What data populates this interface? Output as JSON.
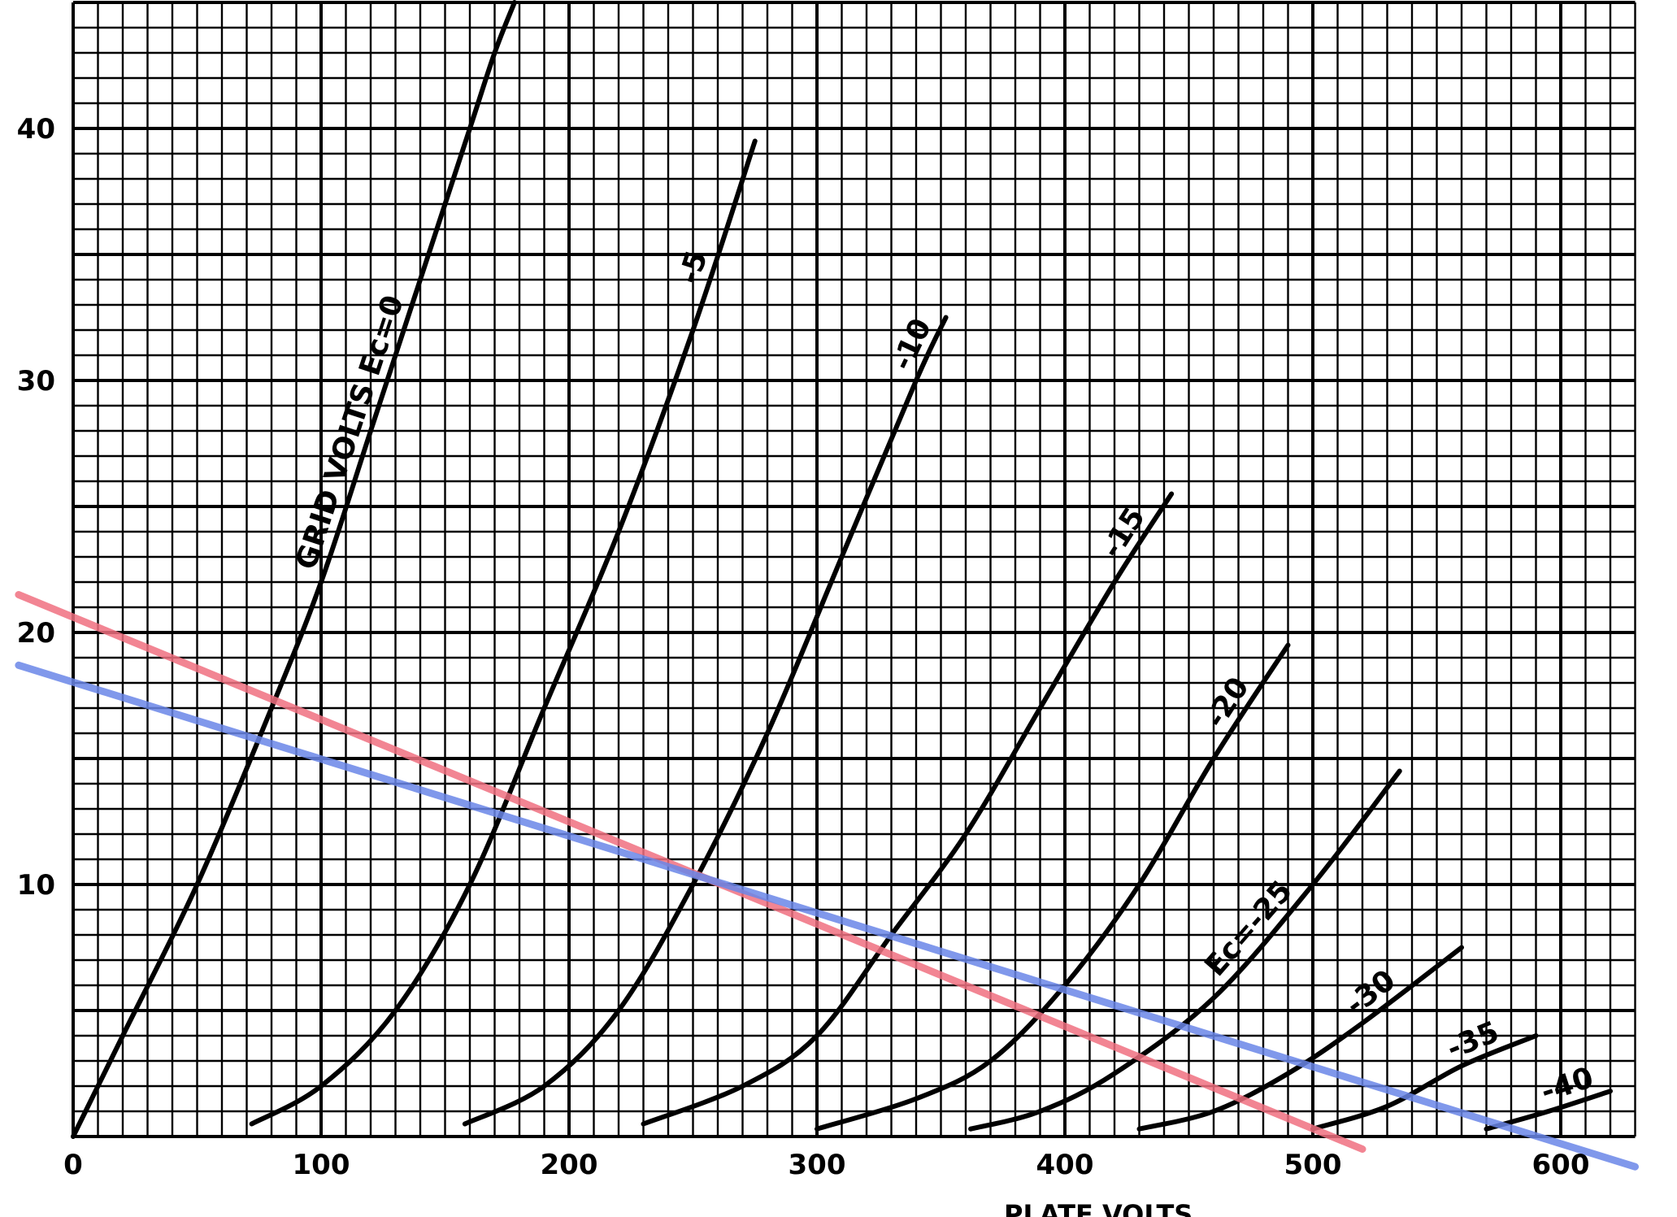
{
  "chart_data": {
    "type": "line",
    "xlim": [
      0,
      630
    ],
    "ylim": [
      0,
      45
    ],
    "grid": true,
    "x_tick_labels": [
      "0",
      "100",
      "200",
      "300",
      "400",
      "500",
      "600"
    ],
    "x_ticks": [
      0,
      100,
      200,
      300,
      400,
      500,
      600
    ],
    "y_tick_labels": [
      "10",
      "20",
      "30",
      "40"
    ],
    "y_ticks": [
      10,
      20,
      30,
      40
    ],
    "xlabel": "PLATE VOLTS",
    "series": [
      {
        "label": "GRID VOLTS Ec=0",
        "label_at": 0.55,
        "points": [
          [
            0,
            0
          ],
          [
            20,
            4
          ],
          [
            50,
            10
          ],
          [
            80,
            17
          ],
          [
            100,
            22
          ],
          [
            120,
            28
          ],
          [
            140,
            34
          ],
          [
            160,
            40
          ],
          [
            170,
            43
          ],
          [
            178,
            45
          ]
        ]
      },
      {
        "label": "-5",
        "label_at": 0.9,
        "points": [
          [
            72,
            0.5
          ],
          [
            100,
            2
          ],
          [
            130,
            5
          ],
          [
            160,
            10
          ],
          [
            190,
            17
          ],
          [
            220,
            24
          ],
          [
            250,
            32
          ],
          [
            275,
            39.5
          ]
        ]
      },
      {
        "label": "-10",
        "label_at": 0.92,
        "points": [
          [
            158,
            0.5
          ],
          [
            190,
            2
          ],
          [
            220,
            5
          ],
          [
            250,
            10
          ],
          [
            280,
            16
          ],
          [
            310,
            23
          ],
          [
            340,
            30
          ],
          [
            352,
            32.5
          ]
        ]
      },
      {
        "label": "-15",
        "label_at": 0.92,
        "points": [
          [
            230,
            0.5
          ],
          [
            270,
            2
          ],
          [
            300,
            4
          ],
          [
            330,
            8
          ],
          [
            360,
            12
          ],
          [
            390,
            17
          ],
          [
            420,
            22
          ],
          [
            443,
            25.5
          ]
        ]
      },
      {
        "label": "-20",
        "label_at": 0.9,
        "points": [
          [
            300,
            0.3
          ],
          [
            340,
            1.5
          ],
          [
            370,
            3
          ],
          [
            400,
            6
          ],
          [
            430,
            10
          ],
          [
            460,
            15
          ],
          [
            490,
            19.5
          ]
        ]
      },
      {
        "label": "Ec=-25",
        "label_at": 0.7,
        "points": [
          [
            362,
            0.3
          ],
          [
            390,
            1
          ],
          [
            420,
            2.5
          ],
          [
            460,
            5.5
          ],
          [
            500,
            10
          ],
          [
            535,
            14.5
          ]
        ]
      },
      {
        "label": "-30",
        "label_at": 0.8,
        "points": [
          [
            430,
            0.3
          ],
          [
            460,
            1
          ],
          [
            490,
            2.5
          ],
          [
            520,
            4.5
          ],
          [
            560,
            7.5
          ]
        ]
      },
      {
        "label": "-35",
        "label_at": 0.75,
        "points": [
          [
            500,
            0.3
          ],
          [
            530,
            1.2
          ],
          [
            560,
            2.8
          ],
          [
            590,
            4
          ]
        ]
      },
      {
        "label": "-40",
        "label_at": 0.7,
        "points": [
          [
            570,
            0.3
          ],
          [
            595,
            1
          ],
          [
            620,
            1.8
          ]
        ]
      }
    ],
    "load_lines": [
      {
        "color": "#f07080",
        "points": [
          [
            -22,
            21.5
          ],
          [
            520,
            -0.5
          ]
        ]
      },
      {
        "color": "#6a86e8",
        "points": [
          [
            -22,
            18.7
          ],
          [
            630,
            -1.2
          ]
        ]
      }
    ]
  }
}
